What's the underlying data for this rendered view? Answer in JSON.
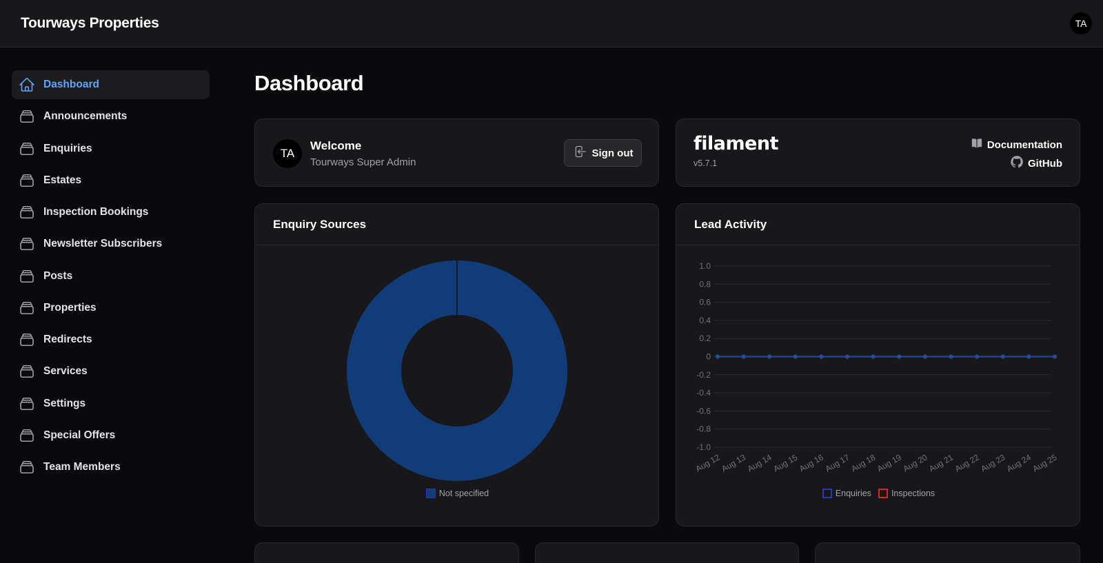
{
  "topbar": {
    "brand": "Tourways Properties",
    "avatar_initials": "TA"
  },
  "sidebar": {
    "items": [
      {
        "label": "Dashboard",
        "icon": "home-icon",
        "active": true
      },
      {
        "label": "Announcements",
        "icon": "rectangle-stack-icon"
      },
      {
        "label": "Enquiries",
        "icon": "rectangle-stack-icon"
      },
      {
        "label": "Estates",
        "icon": "rectangle-stack-icon"
      },
      {
        "label": "Inspection Bookings",
        "icon": "rectangle-stack-icon"
      },
      {
        "label": "Newsletter Subscribers",
        "icon": "rectangle-stack-icon"
      },
      {
        "label": "Posts",
        "icon": "rectangle-stack-icon"
      },
      {
        "label": "Properties",
        "icon": "rectangle-stack-icon"
      },
      {
        "label": "Redirects",
        "icon": "rectangle-stack-icon"
      },
      {
        "label": "Services",
        "icon": "rectangle-stack-icon"
      },
      {
        "label": "Settings",
        "icon": "rectangle-stack-icon"
      },
      {
        "label": "Special Offers",
        "icon": "rectangle-stack-icon"
      },
      {
        "label": "Team Members",
        "icon": "rectangle-stack-icon"
      }
    ]
  },
  "main": {
    "title": "Dashboard",
    "welcome": {
      "avatar_initials": "TA",
      "title": "Welcome",
      "subtitle": "Tourways Super Admin",
      "signout_label": "Sign out"
    },
    "filament": {
      "logo": "filament",
      "version": "v5.7.1",
      "documentation_label": "Documentation",
      "github_label": "GitHub"
    },
    "enquiry_sources": {
      "title": "Enquiry Sources"
    },
    "lead_activity": {
      "title": "Lead Activity"
    }
  },
  "colors": {
    "accent": "#60a5fa",
    "enquiries": "#1e40af",
    "inspections": "#dc2626",
    "donut": "#123c78"
  },
  "chart_data": [
    {
      "type": "pie",
      "title": "Enquiry Sources",
      "categories": [
        "Not specified"
      ],
      "values": [
        1
      ],
      "donut": true,
      "legend": "bottom"
    },
    {
      "type": "line",
      "title": "Lead Activity",
      "x": [
        "Aug 12",
        "Aug 13",
        "Aug 14",
        "Aug 15",
        "Aug 16",
        "Aug 17",
        "Aug 18",
        "Aug 19",
        "Aug 20",
        "Aug 21",
        "Aug 22",
        "Aug 23",
        "Aug 24",
        "Aug 25"
      ],
      "series": [
        {
          "name": "Enquiries",
          "values": [
            0,
            0,
            0,
            0,
            0,
            0,
            0,
            0,
            0,
            0,
            0,
            0,
            0,
            0
          ]
        },
        {
          "name": "Inspections",
          "values": [
            0,
            0,
            0,
            0,
            0,
            0,
            0,
            0,
            0,
            0,
            0,
            0,
            0,
            0
          ]
        }
      ],
      "ylim": [
        -1.0,
        1.0
      ],
      "yticks": [
        "1.0",
        "0.8",
        "0.6",
        "0.4",
        "0.2",
        "0",
        "-0.2",
        "-0.4",
        "-0.6",
        "-0.8",
        "-1.0"
      ],
      "grid": true,
      "legend": "bottom"
    }
  ]
}
